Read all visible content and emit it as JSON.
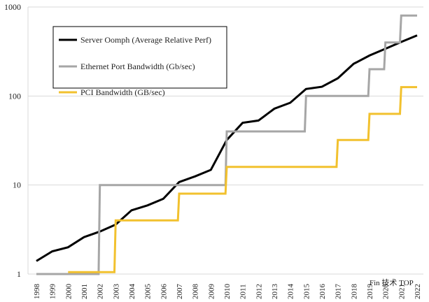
{
  "chart_data": {
    "type": "line",
    "title": "",
    "xlabel": "",
    "ylabel": "",
    "y_scale": "log",
    "ylim": [
      1,
      1000
    ],
    "yticks": [
      "1",
      "10",
      "100",
      "1000"
    ],
    "grid": "horizontal",
    "legend_position": "top-left",
    "x": [
      "1998",
      "1999",
      "2000",
      "2001",
      "2002",
      "2003",
      "2004",
      "2005",
      "2006",
      "2007",
      "2008",
      "2009",
      "2010",
      "2011",
      "2012",
      "2013",
      "2014",
      "2015",
      "2016",
      "2017",
      "2018",
      "2019",
      "2020",
      "2021",
      "2022"
    ],
    "series": [
      {
        "name": "Server Oomph (Average Relative Perf)",
        "color": "#000000",
        "step": false,
        "values": [
          1.4,
          1.8,
          2.0,
          2.6,
          3.0,
          3.6,
          5.2,
          5.9,
          7.0,
          10.8,
          12.5,
          14.8,
          32,
          50,
          53,
          72,
          84,
          120,
          127,
          158,
          230,
          285,
          340,
          405,
          480
        ]
      },
      {
        "name": "Ethernet Port Bandwidth (Gb/sec)",
        "color": "#a6a6a6",
        "step": true,
        "values": [
          1,
          1,
          1,
          1,
          10,
          10,
          10,
          10,
          10,
          10,
          10,
          10,
          40,
          40,
          40,
          40,
          40,
          100,
          100,
          100,
          100,
          200,
          400,
          800,
          800
        ]
      },
      {
        "name": "PCI Bandwidth (GB/sec)",
        "color": "#f2c12e",
        "step": true,
        "values": [
          null,
          null,
          1.05,
          1.05,
          1.05,
          4,
          4,
          4,
          4,
          8,
          8,
          8,
          16,
          16,
          16,
          16,
          16,
          16,
          16,
          32,
          32,
          63,
          63,
          126,
          126
        ]
      }
    ]
  },
  "watermark": {
    "text": "Fin 技术 TOP"
  }
}
